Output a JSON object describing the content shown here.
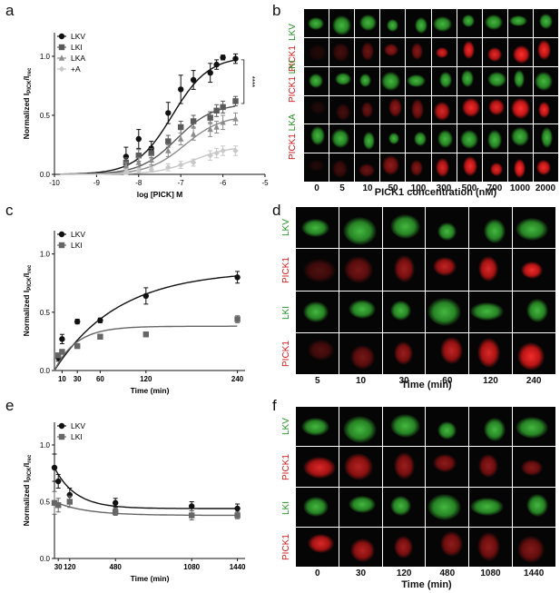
{
  "panels": {
    "a": "a",
    "b": "b",
    "c": "c",
    "d": "d",
    "e": "e",
    "f": "f"
  },
  "chart_data": [
    {
      "id": "a",
      "type": "line",
      "title": "",
      "xlabel": "log [PICK] M",
      "ylabel": "Normalized IPICK/Irec",
      "ylabel_main": "Normalized I",
      "ylabel_sub1": "PICK",
      "ylabel_sep": "/I",
      "ylabel_sub2": "rec",
      "xlim": [
        -10,
        -5
      ],
      "ylim": [
        0,
        1.2
      ],
      "xticks": [
        "-10",
        "-9",
        "-8",
        "-7",
        "-6",
        "-5"
      ],
      "yticks": [
        "0.0",
        "0.5",
        "1.0"
      ],
      "significance": "****",
      "legend": "top-left",
      "series": [
        {
          "name": "LKV",
          "color": "#111111",
          "marker": "circle",
          "x": [
            -8.3,
            -8.0,
            -7.7,
            -7.3,
            -7.0,
            -6.7,
            -6.3,
            -6.15,
            -6.0,
            -5.7
          ],
          "y": [
            0.15,
            0.3,
            0.22,
            0.52,
            0.72,
            0.8,
            0.86,
            0.93,
            0.99,
            0.98
          ],
          "err": [
            0.08,
            0.08,
            0.06,
            0.09,
            0.12,
            0.08,
            0.08,
            0.04,
            0.02,
            0.04
          ],
          "fit_top": 1.0,
          "fit_logec50": -7.2,
          "fit_hill": 1.0
        },
        {
          "name": "LKI",
          "color": "#5a5a5a",
          "marker": "square",
          "x": [
            -8.3,
            -8.0,
            -7.7,
            -7.3,
            -7.0,
            -6.7,
            -6.3,
            -6.15,
            -6.0,
            -5.7
          ],
          "y": [
            0.1,
            0.16,
            0.18,
            0.28,
            0.4,
            0.45,
            0.48,
            0.54,
            0.57,
            0.62
          ],
          "err": [
            0.04,
            0.05,
            0.04,
            0.05,
            0.05,
            0.05,
            0.05,
            0.05,
            0.05,
            0.04
          ],
          "fit_top": 0.6,
          "fit_logec50": -7.1,
          "fit_hill": 1.0
        },
        {
          "name": "LKA",
          "color": "#8c8c8c",
          "marker": "triangle",
          "x": [
            -8.3,
            -8.0,
            -7.7,
            -7.3,
            -7.0,
            -6.7,
            -6.3,
            -6.15,
            -6.0,
            -5.7
          ],
          "y": [
            0.07,
            0.1,
            0.12,
            0.2,
            0.3,
            0.34,
            0.38,
            0.4,
            0.44,
            0.47
          ],
          "err": [
            0.03,
            0.04,
            0.04,
            0.05,
            0.05,
            0.05,
            0.06,
            0.05,
            0.06,
            0.05
          ],
          "fit_top": 0.5,
          "fit_logec50": -6.9,
          "fit_hill": 1.0
        },
        {
          "name": "+A",
          "color": "#c8c8c8",
          "marker": "diamond",
          "x": [
            -8.3,
            -8.0,
            -7.7,
            -7.3,
            -7.0,
            -6.7,
            -6.3,
            -6.15,
            -6.0,
            -5.7
          ],
          "y": [
            0.02,
            0.03,
            0.04,
            0.06,
            0.08,
            0.1,
            0.16,
            0.18,
            0.2,
            0.2
          ],
          "err": [
            0.02,
            0.02,
            0.02,
            0.03,
            0.03,
            0.03,
            0.04,
            0.04,
            0.04,
            0.04
          ],
          "fit_top": 0.24,
          "fit_logec50": -6.7,
          "fit_hill": 1.0
        }
      ]
    },
    {
      "id": "c",
      "type": "line",
      "title": "",
      "xlabel": "Time (min)",
      "ylabel_main": "Normalized I",
      "ylabel_sub1": "PICK",
      "ylabel_sep": "/I",
      "ylabel_sub2": "rec",
      "xlim": [
        0,
        250
      ],
      "ylim": [
        0,
        1.2
      ],
      "xticks": [
        "10",
        "30",
        "60",
        "120",
        "240"
      ],
      "xtick_values": [
        10,
        30,
        60,
        120,
        240
      ],
      "yticks": [
        "0.0",
        "0.5",
        "1.0"
      ],
      "legend": "top-left",
      "series": [
        {
          "name": "LKV",
          "color": "#111111",
          "marker": "circle",
          "x": [
            5,
            10,
            30,
            60,
            120,
            240
          ],
          "y": [
            0.11,
            0.27,
            0.42,
            0.43,
            0.64,
            0.8
          ],
          "err": [
            0.03,
            0.04,
            0.02,
            0.02,
            0.07,
            0.05
          ],
          "fit_plateau": 0.86,
          "fit_k": 0.012
        },
        {
          "name": "LKI",
          "color": "#666666",
          "marker": "square",
          "x": [
            5,
            10,
            30,
            60,
            120,
            240
          ],
          "y": [
            0.13,
            0.16,
            0.21,
            0.29,
            0.31,
            0.44
          ],
          "err": [
            0.02,
            0.02,
            0.02,
            0.02,
            0.02,
            0.03
          ],
          "fit_plateau": 0.38,
          "fit_k": 0.035
        }
      ]
    },
    {
      "id": "e",
      "type": "line",
      "title": "",
      "xlabel": "Time (min)",
      "ylabel_main": "Normalized I",
      "ylabel_sub1": "PICK",
      "ylabel_sep": "/I",
      "ylabel_sub2": "rec",
      "xlim": [
        0,
        1500
      ],
      "ylim": [
        0,
        1.2
      ],
      "xticks": [
        "30",
        "120",
        "480",
        "1080",
        "1440"
      ],
      "xtick_values": [
        30,
        120,
        480,
        1080,
        1440
      ],
      "yticks": [
        "0.0",
        "0.5",
        "1.0"
      ],
      "legend": "top-left",
      "series": [
        {
          "name": "LKV",
          "color": "#111111",
          "marker": "circle",
          "x": [
            0,
            30,
            120,
            480,
            1080,
            1440
          ],
          "y": [
            0.8,
            0.68,
            0.56,
            0.49,
            0.46,
            0.44
          ],
          "err": [
            0.12,
            0.06,
            0.06,
            0.04,
            0.04,
            0.04
          ],
          "fit_top": 0.8,
          "fit_plateau": 0.44,
          "fit_k": 0.006
        },
        {
          "name": "LKI",
          "color": "#666666",
          "marker": "square",
          "x": [
            0,
            30,
            120,
            480,
            1080,
            1440
          ],
          "y": [
            0.49,
            0.47,
            0.5,
            0.41,
            0.38,
            0.38
          ],
          "err": [
            0.1,
            0.06,
            0.05,
            0.03,
            0.04,
            0.03
          ],
          "fit_top": 0.5,
          "fit_plateau": 0.38,
          "fit_k": 0.004
        }
      ]
    }
  ],
  "image_panels": {
    "b": {
      "rows": [
        {
          "label_a": "LKV",
          "label_b": "",
          "channel": "green",
          "label_color": "green"
        },
        {
          "label_a": "PICK1",
          "label_b": "",
          "channel": "red",
          "label_color": "red"
        },
        {
          "label_a": "PICK1",
          "label_b": "LKI",
          "channel": "green",
          "label_color": "mixed"
        },
        {
          "label_a": "",
          "label_b": "",
          "channel": "red",
          "label_color": "red"
        },
        {
          "label_a": "PICK1",
          "label_b": "LKA",
          "channel": "green",
          "label_color": "mixed"
        },
        {
          "label_a": "",
          "label_b": "",
          "channel": "red",
          "label_color": "red"
        }
      ],
      "columns": [
        "0",
        "5",
        "10",
        "50",
        "100",
        "300",
        "500",
        "700",
        "1000",
        "2000"
      ],
      "xlabel": "PICK1 concentration (nM)",
      "red_intensity": [
        0.05,
        0.25,
        0.4,
        0.55,
        0.5,
        0.85,
        0.95,
        0.9,
        1.0,
        0.95
      ]
    },
    "d": {
      "rows": [
        {
          "label": "LKV",
          "channel": "green"
        },
        {
          "label": "PICK1",
          "channel": "red"
        },
        {
          "label": "LKI",
          "channel": "green"
        },
        {
          "label": "PICK1",
          "channel": "red"
        }
      ],
      "columns": [
        "5",
        "10",
        "30",
        "60",
        "120",
        "240"
      ],
      "xlabel": "Time (min)",
      "red_intensity": [
        0.3,
        0.45,
        0.6,
        0.75,
        0.85,
        0.95
      ]
    },
    "f": {
      "rows": [
        {
          "label": "LKV",
          "channel": "green"
        },
        {
          "label": "PICK1",
          "channel": "red"
        },
        {
          "label": "LKI",
          "channel": "green"
        },
        {
          "label": "PICK1",
          "channel": "red"
        }
      ],
      "columns": [
        "0",
        "30",
        "120",
        "480",
        "1080",
        "1440"
      ],
      "xlabel": "Time (min)",
      "red_intensity": [
        0.85,
        0.7,
        0.6,
        0.55,
        0.55,
        0.5
      ]
    }
  }
}
